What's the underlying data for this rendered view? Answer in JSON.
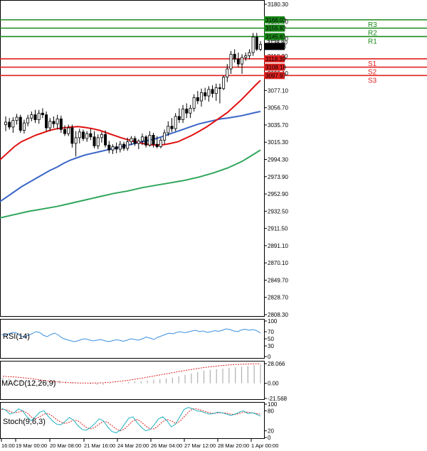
{
  "chart_data": {
    "type": "candlestick",
    "main": {
      "price_axis_ticks": [
        "3180.30",
        "3159.50",
        "3139.50",
        "3118.30",
        "3098.10",
        "3077.10",
        "3056.70",
        "3035.70",
        "3015.30",
        "2994.30",
        "2973.90",
        "2952.90",
        "2932.50",
        "2911.50",
        "2891.10",
        "2870.10",
        "2849.70",
        "2828.70",
        "2808.30"
      ],
      "ylim": [
        2805,
        3185
      ],
      "levels": [
        {
          "name": "R3",
          "value": 3166.03,
          "label": "3166.03",
          "color": "#1a8a1a"
        },
        {
          "name": "R2",
          "value": 3155.82,
          "label": "3155.82",
          "color": "#1a8a1a"
        },
        {
          "name": "R1",
          "value": 3145.61,
          "label": "3145.61",
          "color": "#1a8a1a"
        },
        {
          "name": "S1",
          "value": 3118.39,
          "label": "3118.39",
          "color": "#e02020"
        },
        {
          "name": "S2",
          "value": 3108.18,
          "label": "3108.18",
          "color": "#e02020"
        },
        {
          "name": "S3",
          "value": 3097.97,
          "label": "3097.97",
          "color": "#e02020"
        }
      ],
      "current_price": "3135.68",
      "bid_ask_label": "3138.80",
      "candles": [
        {
          "o": 3038,
          "h": 3048,
          "l": 3030,
          "c": 3041
        },
        {
          "o": 3041,
          "h": 3046,
          "l": 3032,
          "c": 3035
        },
        {
          "o": 3035,
          "h": 3047,
          "l": 3028,
          "c": 3043
        },
        {
          "o": 3043,
          "h": 3051,
          "l": 3038,
          "c": 3047
        },
        {
          "o": 3047,
          "h": 3050,
          "l": 3028,
          "c": 3031
        },
        {
          "o": 3031,
          "h": 3044,
          "l": 3027,
          "c": 3040
        },
        {
          "o": 3040,
          "h": 3050,
          "l": 3036,
          "c": 3046
        },
        {
          "o": 3046,
          "h": 3054,
          "l": 3042,
          "c": 3050
        },
        {
          "o": 3050,
          "h": 3056,
          "l": 3040,
          "c": 3044
        },
        {
          "o": 3044,
          "h": 3056,
          "l": 3039,
          "c": 3052
        },
        {
          "o": 3052,
          "h": 3058,
          "l": 3046,
          "c": 3050
        },
        {
          "o": 3050,
          "h": 3054,
          "l": 3030,
          "c": 3034
        },
        {
          "o": 3034,
          "h": 3046,
          "l": 3030,
          "c": 3042
        },
        {
          "o": 3042,
          "h": 3048,
          "l": 3034,
          "c": 3039
        },
        {
          "o": 3039,
          "h": 3050,
          "l": 3032,
          "c": 3045
        },
        {
          "o": 3045,
          "h": 3049,
          "l": 3028,
          "c": 3032
        },
        {
          "o": 3032,
          "h": 3037,
          "l": 3024,
          "c": 3027
        },
        {
          "o": 3027,
          "h": 3038,
          "l": 3024,
          "c": 3034
        },
        {
          "o": 3034,
          "h": 3038,
          "l": 3010,
          "c": 3015
        },
        {
          "o": 3015,
          "h": 3030,
          "l": 2999,
          "c": 3022
        },
        {
          "o": 3022,
          "h": 3033,
          "l": 3015,
          "c": 3029
        },
        {
          "o": 3029,
          "h": 3032,
          "l": 3018,
          "c": 3021
        },
        {
          "o": 3021,
          "h": 3030,
          "l": 3017,
          "c": 3027
        },
        {
          "o": 3027,
          "h": 3033,
          "l": 3019,
          "c": 3023
        },
        {
          "o": 3023,
          "h": 3030,
          "l": 3009,
          "c": 3012
        },
        {
          "o": 3012,
          "h": 3026,
          "l": 3008,
          "c": 3022
        },
        {
          "o": 3022,
          "h": 3029,
          "l": 3016,
          "c": 3026
        },
        {
          "o": 3026,
          "h": 3031,
          "l": 3010,
          "c": 3013
        },
        {
          "o": 3013,
          "h": 3018,
          "l": 3003,
          "c": 3007
        },
        {
          "o": 3007,
          "h": 3014,
          "l": 3002,
          "c": 3011
        },
        {
          "o": 3011,
          "h": 3016,
          "l": 3003,
          "c": 3008
        },
        {
          "o": 3008,
          "h": 3018,
          "l": 3004,
          "c": 3014
        },
        {
          "o": 3014,
          "h": 3017,
          "l": 3006,
          "c": 3009
        },
        {
          "o": 3009,
          "h": 3022,
          "l": 3006,
          "c": 3017
        },
        {
          "o": 3017,
          "h": 3024,
          "l": 3013,
          "c": 3021
        },
        {
          "o": 3021,
          "h": 3024,
          "l": 3012,
          "c": 3015
        },
        {
          "o": 3015,
          "h": 3020,
          "l": 3008,
          "c": 3018
        },
        {
          "o": 3018,
          "h": 3027,
          "l": 3013,
          "c": 3023
        },
        {
          "o": 3023,
          "h": 3025,
          "l": 3010,
          "c": 3013
        },
        {
          "o": 3013,
          "h": 3030,
          "l": 3011,
          "c": 3025
        },
        {
          "o": 3025,
          "h": 3028,
          "l": 3010,
          "c": 3014
        },
        {
          "o": 3014,
          "h": 3024,
          "l": 3009,
          "c": 3011
        },
        {
          "o": 3011,
          "h": 3022,
          "l": 3009,
          "c": 3019
        },
        {
          "o": 3019,
          "h": 3032,
          "l": 3014,
          "c": 3028
        },
        {
          "o": 3028,
          "h": 3042,
          "l": 3024,
          "c": 3036
        },
        {
          "o": 3036,
          "h": 3046,
          "l": 3029,
          "c": 3033
        },
        {
          "o": 3033,
          "h": 3052,
          "l": 3030,
          "c": 3048
        },
        {
          "o": 3048,
          "h": 3058,
          "l": 3040,
          "c": 3044
        },
        {
          "o": 3044,
          "h": 3062,
          "l": 3040,
          "c": 3057
        },
        {
          "o": 3057,
          "h": 3064,
          "l": 3046,
          "c": 3052
        },
        {
          "o": 3052,
          "h": 3062,
          "l": 3046,
          "c": 3058
        },
        {
          "o": 3058,
          "h": 3075,
          "l": 3054,
          "c": 3071
        },
        {
          "o": 3071,
          "h": 3079,
          "l": 3063,
          "c": 3067
        },
        {
          "o": 3067,
          "h": 3082,
          "l": 3060,
          "c": 3077
        },
        {
          "o": 3077,
          "h": 3083,
          "l": 3068,
          "c": 3073
        },
        {
          "o": 3073,
          "h": 3085,
          "l": 3066,
          "c": 3081
        },
        {
          "o": 3081,
          "h": 3086,
          "l": 3071,
          "c": 3076
        },
        {
          "o": 3076,
          "h": 3088,
          "l": 3067,
          "c": 3083
        },
        {
          "o": 3083,
          "h": 3088,
          "l": 3064,
          "c": 3082
        },
        {
          "o": 3082,
          "h": 3098,
          "l": 3080,
          "c": 3096
        },
        {
          "o": 3096,
          "h": 3112,
          "l": 3090,
          "c": 3106
        },
        {
          "o": 3106,
          "h": 3128,
          "l": 3100,
          "c": 3124
        },
        {
          "o": 3124,
          "h": 3130,
          "l": 3114,
          "c": 3118
        },
        {
          "o": 3118,
          "h": 3126,
          "l": 3108,
          "c": 3112
        },
        {
          "o": 3112,
          "h": 3124,
          "l": 3100,
          "c": 3120
        },
        {
          "o": 3120,
          "h": 3126,
          "l": 3116,
          "c": 3122
        },
        {
          "o": 3122,
          "h": 3130,
          "l": 3118,
          "c": 3126
        },
        {
          "o": 3126,
          "h": 3150,
          "l": 3122,
          "c": 3145
        },
        {
          "o": 3145,
          "h": 3150,
          "l": 3128,
          "c": 3130
        },
        {
          "o": 3130,
          "h": 3140,
          "l": 3128,
          "c": 3136
        }
      ],
      "ma_fast": {
        "name": "MA fast",
        "color": "#e01010",
        "values": [
          [
            0,
            2995
          ],
          [
            10,
            3003
          ],
          [
            20,
            3011
          ],
          [
            30,
            3017
          ],
          [
            40,
            3021
          ],
          [
            50,
            3025
          ],
          [
            60,
            3028
          ],
          [
            70,
            3031
          ],
          [
            80,
            3033
          ],
          [
            90,
            3034
          ],
          [
            100,
            3035
          ],
          [
            110,
            3035.5
          ],
          [
            120,
            3034.5
          ],
          [
            130,
            3033
          ],
          [
            140,
            3031
          ],
          [
            150,
            3028
          ],
          [
            160,
            3025
          ],
          [
            170,
            3022
          ],
          [
            180,
            3019.5
          ],
          [
            190,
            3017
          ],
          [
            200,
            3015
          ],
          [
            210,
            3013.5
          ],
          [
            220,
            3013
          ],
          [
            230,
            3013.5
          ],
          [
            240,
            3015
          ],
          [
            250,
            3017
          ],
          [
            260,
            3021
          ],
          [
            270,
            3025
          ],
          [
            280,
            3030
          ],
          [
            290,
            3035
          ],
          [
            300,
            3041
          ],
          [
            310,
            3047
          ],
          [
            320,
            3053
          ],
          [
            330,
            3061
          ],
          [
            340,
            3069
          ],
          [
            350,
            3078
          ],
          [
            360,
            3087
          ],
          [
            366,
            3092
          ]
        ]
      },
      "ma_mid": {
        "name": "MA medium",
        "color": "#3a66c8",
        "values": [
          [
            0,
            2944
          ],
          [
            10,
            2950
          ],
          [
            20,
            2956
          ],
          [
            30,
            2962
          ],
          [
            40,
            2967
          ],
          [
            50,
            2972
          ],
          [
            60,
            2977
          ],
          [
            70,
            2982
          ],
          [
            80,
            2986
          ],
          [
            90,
            2991
          ],
          [
            100,
            2995
          ],
          [
            110,
            2998
          ],
          [
            120,
            3001
          ],
          [
            130,
            3003
          ],
          [
            140,
            3005
          ],
          [
            150,
            3007
          ],
          [
            160,
            3009
          ],
          [
            170,
            3011
          ],
          [
            180,
            3013
          ],
          [
            190,
            3015
          ],
          [
            200,
            3017
          ],
          [
            210,
            3019
          ],
          [
            220,
            3021
          ],
          [
            230,
            3024
          ],
          [
            240,
            3027
          ],
          [
            250,
            3030
          ],
          [
            260,
            3033
          ],
          [
            270,
            3036
          ],
          [
            280,
            3039
          ],
          [
            290,
            3041
          ],
          [
            300,
            3043
          ],
          [
            310,
            3045
          ],
          [
            320,
            3046
          ],
          [
            330,
            3047.5
          ],
          [
            340,
            3049
          ],
          [
            350,
            3051
          ],
          [
            360,
            3053
          ],
          [
            366,
            3054
          ]
        ]
      },
      "ma_slow": {
        "name": "MA slow",
        "color": "#2ea55a",
        "values": [
          [
            0,
            2924
          ],
          [
            20,
            2928
          ],
          [
            40,
            2932
          ],
          [
            60,
            2935
          ],
          [
            80,
            2938
          ],
          [
            100,
            2942
          ],
          [
            120,
            2946
          ],
          [
            140,
            2950
          ],
          [
            160,
            2954
          ],
          [
            180,
            2957
          ],
          [
            200,
            2961
          ],
          [
            220,
            2964
          ],
          [
            240,
            2967
          ],
          [
            260,
            2970
          ],
          [
            280,
            2974
          ],
          [
            300,
            2979
          ],
          [
            320,
            2985
          ],
          [
            340,
            2993
          ],
          [
            355,
            3001
          ],
          [
            366,
            3007
          ]
        ]
      }
    },
    "time_axis_ticks": [
      "16:00",
      "19 Mar 00:00",
      "20 Mar 08:00",
      "21 Mar 16:00",
      "24 Mar 20:00",
      "26 Mar 04:00",
      "27 Mar 12:00",
      "28 Mar 20:00",
      "1 Apr 00:00"
    ],
    "rsi": {
      "name": "RSI(14)",
      "ticks": [
        "100",
        "70",
        "50",
        "30",
        "0"
      ],
      "ylim": [
        0,
        100
      ],
      "color": "#3a8fe0",
      "values": [
        62,
        60,
        64,
        68,
        66,
        58,
        55,
        60,
        64,
        70,
        68,
        60,
        56,
        62,
        66,
        60,
        52,
        48,
        45,
        42,
        44,
        48,
        50,
        47,
        44,
        46,
        48,
        45,
        42,
        44,
        47,
        46,
        43,
        46,
        50,
        48,
        46,
        50,
        55,
        52,
        48,
        54,
        58,
        62,
        66,
        64,
        68,
        70,
        67,
        69,
        72,
        74,
        70,
        72,
        68,
        70,
        73,
        71,
        74,
        78,
        76,
        72,
        70,
        75,
        77,
        74,
        76,
        73,
        66
      ]
    },
    "macd": {
      "name": "MACD(12,26,9)",
      "ticks": [
        "28.066",
        "0.00",
        "-21.568"
      ],
      "ylim": [
        -21.568,
        28.066
      ],
      "hist_color": "#b0b0b0",
      "signal_color": "#e02020",
      "histogram": [
        8,
        7,
        6,
        5,
        4,
        3,
        2,
        2,
        3,
        4,
        3,
        2,
        1,
        0,
        -1,
        -2,
        -2,
        -1,
        0,
        1,
        2,
        3,
        3,
        4,
        5,
        6,
        7,
        8,
        10,
        12,
        14,
        16,
        18,
        19,
        20,
        21,
        22,
        23,
        24,
        25,
        26,
        27
      ],
      "signal": [
        10,
        9.5,
        9,
        8.2,
        7.2,
        6,
        4.8,
        3.6,
        2.6,
        1.8,
        1.2,
        0.8,
        0.5,
        0.4,
        0.3,
        0.5,
        0.8,
        1.4,
        2.2,
        3.2,
        4.4,
        5.8,
        7.2,
        8.8,
        10.4,
        12,
        13.6,
        15.2,
        16.8,
        18.3,
        19.8,
        21.2,
        22.5,
        23.6,
        24.6,
        25.5,
        26.2,
        26.8,
        27.2,
        27.6,
        27.9,
        28
      ]
    },
    "stoch": {
      "name": "Stoch(9,6,3)",
      "ticks": [
        "100",
        "80",
        "20",
        "0"
      ],
      "ylim": [
        0,
        100
      ],
      "main_color": "#20b0c0",
      "signal_color": "#e02020",
      "main": [
        88,
        82,
        70,
        74,
        86,
        80,
        62,
        50,
        62,
        76,
        80,
        64,
        50,
        40,
        38,
        48,
        60,
        52,
        36,
        24,
        22,
        30,
        42,
        56,
        50,
        32,
        18,
        14,
        22,
        40,
        58,
        62,
        44,
        30,
        20,
        24,
        38,
        56,
        62,
        50,
        32,
        40,
        62,
        84,
        90,
        86,
        80,
        78,
        74,
        70,
        72,
        76,
        74,
        70,
        66,
        70,
        76,
        80,
        72,
        74,
        70,
        64
      ],
      "signal": [
        84,
        84,
        78,
        74,
        76,
        80,
        74,
        62,
        56,
        62,
        70,
        72,
        64,
        54,
        46,
        42,
        46,
        52,
        50,
        40,
        30,
        26,
        30,
        40,
        48,
        46,
        36,
        26,
        20,
        26,
        38,
        50,
        54,
        46,
        34,
        26,
        26,
        36,
        48,
        54,
        50,
        42,
        48,
        62,
        76,
        86,
        86,
        82,
        78,
        74,
        72,
        74,
        74,
        73,
        70,
        69,
        72,
        76,
        76,
        74,
        72,
        70
      ]
    }
  }
}
